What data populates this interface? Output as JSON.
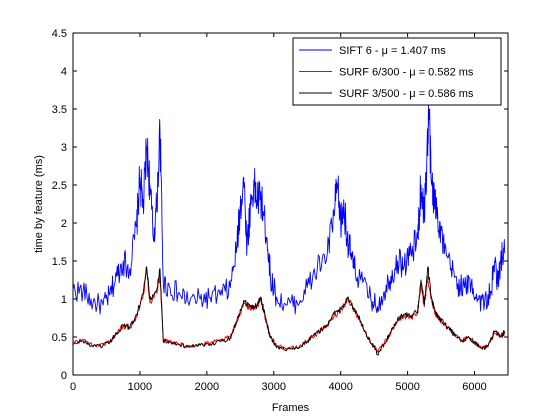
{
  "chart_data": {
    "type": "line",
    "xlabel": "Frames",
    "ylabel": "time by feature (ms)",
    "xlim": [
      0,
      6500
    ],
    "ylim": [
      0,
      4.5
    ],
    "xticks": [
      "0",
      "1000",
      "2000",
      "3000",
      "4000",
      "5000",
      "6000"
    ],
    "yticks": [
      "0",
      "0.5",
      "1",
      "1.5",
      "2",
      "2.5",
      "3",
      "3.5",
      "4",
      "4.5"
    ],
    "grid": false,
    "legend_position": "top-right",
    "series": [
      {
        "name": "SIFT 6 - μ = 1.407 ms",
        "color": "#0000ff",
        "x": [
          0,
          150,
          300,
          450,
          550,
          650,
          750,
          850,
          950,
          1000,
          1050,
          1100,
          1150,
          1200,
          1250,
          1300,
          1350,
          1450,
          1600,
          1750,
          1900,
          2050,
          2200,
          2350,
          2450,
          2500,
          2550,
          2600,
          2650,
          2700,
          2750,
          2800,
          2850,
          2900,
          2950,
          3050,
          3200,
          3350,
          3500,
          3650,
          3800,
          3900,
          3950,
          4000,
          4050,
          4100,
          4150,
          4200,
          4300,
          4450,
          4550,
          4650,
          4750,
          4850,
          4950,
          5050,
          5150,
          5200,
          5250,
          5300,
          5320,
          5350,
          5400,
          5450,
          5500,
          5550,
          5650,
          5750,
          5850,
          5950,
          6050,
          6150,
          6250,
          6300,
          6350,
          6400,
          6450
        ],
        "y": [
          1.12,
          1.1,
          0.95,
          0.92,
          1.05,
          1.3,
          1.5,
          1.4,
          1.95,
          2.6,
          2.2,
          3.0,
          2.5,
          1.8,
          2.2,
          3.2,
          1.2,
          1.15,
          1.05,
          0.98,
          1.0,
          1.02,
          1.05,
          1.15,
          1.7,
          2.2,
          2.6,
          1.7,
          2.2,
          2.5,
          2.3,
          2.35,
          2.1,
          1.8,
          1.3,
          1.0,
          0.92,
          0.95,
          1.15,
          1.4,
          1.6,
          2.1,
          2.5,
          2.0,
          2.2,
          1.8,
          1.6,
          1.4,
          1.25,
          1.0,
          0.9,
          1.1,
          1.3,
          1.5,
          1.45,
          1.6,
          1.8,
          2.5,
          2.1,
          3.1,
          3.5,
          2.6,
          2.3,
          2.1,
          1.9,
          1.6,
          1.4,
          1.2,
          1.15,
          1.2,
          1.0,
          0.95,
          1.1,
          1.5,
          1.2,
          1.55,
          1.6
        ]
      },
      {
        "name": "SURF 6/300 - μ = 0.582 ms",
        "color": "#ff0000",
        "x": [
          0,
          150,
          300,
          450,
          550,
          650,
          750,
          850,
          950,
          1050,
          1100,
          1150,
          1250,
          1300,
          1350,
          1450,
          1600,
          1750,
          1900,
          2050,
          2200,
          2350,
          2450,
          2550,
          2650,
          2750,
          2800,
          2850,
          2900,
          2950,
          3050,
          3200,
          3350,
          3500,
          3650,
          3800,
          3900,
          4000,
          4100,
          4200,
          4300,
          4400,
          4500,
          4550,
          4650,
          4750,
          4850,
          4950,
          5050,
          5150,
          5200,
          5250,
          5300,
          5350,
          5400,
          5450,
          5500,
          5600,
          5700,
          5800,
          5900,
          6000,
          6100,
          6200,
          6300,
          6400,
          6450
        ],
        "y": [
          0.42,
          0.47,
          0.38,
          0.4,
          0.44,
          0.55,
          0.65,
          0.62,
          0.78,
          1.05,
          1.4,
          0.95,
          1.1,
          1.3,
          0.45,
          0.45,
          0.4,
          0.38,
          0.4,
          0.42,
          0.45,
          0.5,
          0.7,
          0.95,
          0.88,
          0.9,
          1.0,
          0.85,
          0.65,
          0.5,
          0.38,
          0.35,
          0.36,
          0.45,
          0.55,
          0.65,
          0.78,
          0.85,
          1.0,
          0.85,
          0.7,
          0.5,
          0.38,
          0.3,
          0.42,
          0.55,
          0.72,
          0.78,
          0.75,
          0.82,
          1.2,
          0.9,
          1.3,
          1.0,
          0.85,
          0.75,
          0.72,
          0.62,
          0.52,
          0.46,
          0.5,
          0.44,
          0.36,
          0.38,
          0.55,
          0.5,
          0.55
        ]
      },
      {
        "name": "SURF 3/500 - μ = 0.586 ms",
        "color": "#000000",
        "x": [
          0,
          150,
          300,
          450,
          550,
          650,
          750,
          850,
          950,
          1050,
          1100,
          1150,
          1250,
          1300,
          1350,
          1450,
          1600,
          1750,
          1900,
          2050,
          2200,
          2350,
          2450,
          2550,
          2650,
          2750,
          2800,
          2850,
          2900,
          2950,
          3050,
          3200,
          3350,
          3500,
          3650,
          3800,
          3900,
          4000,
          4100,
          4200,
          4300,
          4400,
          4500,
          4550,
          4650,
          4750,
          4850,
          4950,
          5050,
          5150,
          5200,
          5250,
          5300,
          5350,
          5400,
          5450,
          5500,
          5600,
          5700,
          5800,
          5900,
          6000,
          6100,
          6200,
          6300,
          6400,
          6450
        ],
        "y": [
          0.4,
          0.45,
          0.37,
          0.39,
          0.43,
          0.54,
          0.66,
          0.63,
          0.8,
          1.08,
          1.42,
          0.98,
          1.12,
          1.4,
          0.44,
          0.44,
          0.39,
          0.37,
          0.39,
          0.41,
          0.44,
          0.49,
          0.72,
          0.98,
          0.9,
          0.92,
          1.02,
          0.86,
          0.66,
          0.49,
          0.37,
          0.34,
          0.35,
          0.44,
          0.56,
          0.66,
          0.8,
          0.87,
          1.02,
          0.86,
          0.71,
          0.49,
          0.37,
          0.27,
          0.41,
          0.56,
          0.74,
          0.8,
          0.77,
          0.84,
          1.25,
          0.92,
          1.42,
          1.05,
          0.87,
          0.76,
          0.73,
          0.63,
          0.53,
          0.45,
          0.49,
          0.43,
          0.35,
          0.37,
          0.57,
          0.52,
          0.57
        ]
      }
    ]
  }
}
